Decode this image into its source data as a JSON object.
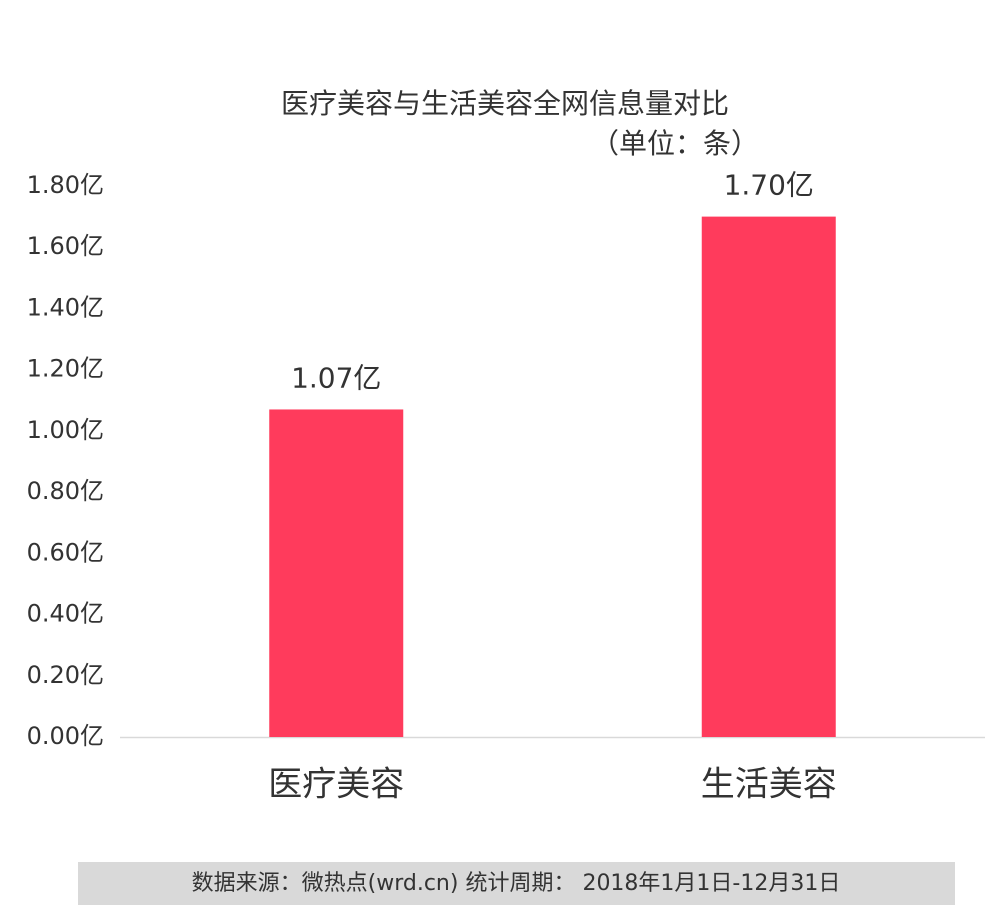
{
  "chart_data": {
    "type": "bar",
    "title": "医疗美容与生活美容全网信息量对比",
    "subtitle": "（单位：条）",
    "categories": [
      "医疗美容",
      "生活美容"
    ],
    "values": [
      1.07,
      1.7
    ],
    "value_labels": [
      "1.07亿",
      "1.70亿"
    ],
    "color": "#ff3b5c",
    "ylim": [
      0,
      1.8
    ],
    "yticks": [
      {
        "value": 0,
        "label": "0.00亿"
      },
      {
        "value": 0.2,
        "label": "0.20亿"
      },
      {
        "value": 0.4,
        "label": "0.40亿"
      },
      {
        "value": 0.6,
        "label": "0.60亿"
      },
      {
        "value": 0.8,
        "label": "0.80亿"
      },
      {
        "value": 1.0,
        "label": "1.00亿"
      },
      {
        "value": 1.2,
        "label": "1.20亿"
      },
      {
        "value": 1.4,
        "label": "1.40亿"
      },
      {
        "value": 1.6,
        "label": "1.60亿"
      },
      {
        "value": 1.8,
        "label": "1.80亿"
      }
    ],
    "grid": false,
    "source": "数据来源：微热点(wrd.cn)  统计周期： 2018年1月1日-12月31日"
  }
}
